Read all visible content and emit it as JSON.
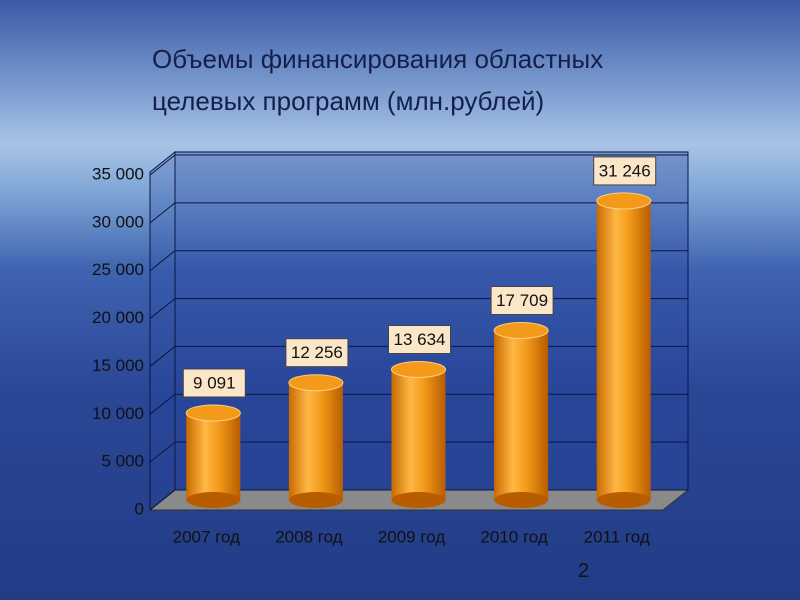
{
  "chart_data": {
    "type": "bar",
    "title": "Объемы финансирования областных целевых программ (млн.рублей)",
    "categories": [
      "2007 год",
      "2008 год",
      "2009 год",
      "2010 год",
      "2011 год"
    ],
    "values": [
      9091,
      12256,
      13634,
      17709,
      31246
    ],
    "value_labels": [
      "9 091",
      "12 256",
      "13 634",
      "17 709",
      "31 246"
    ],
    "color": "#f39a1a",
    "ylim": [
      0,
      35000
    ],
    "yticks": [
      0,
      {
        "value": 5000,
        "label": "5 000"
      },
      {
        "value": 10000,
        "label": "10 000"
      },
      {
        "value": 15000,
        "label": "15 000"
      },
      {
        "value": 20000,
        "label": "20 000"
      },
      {
        "value": 25000,
        "label": "25 000"
      },
      {
        "value": 30000,
        "label": "30 000"
      },
      {
        "value": 35000,
        "label": "35 000"
      }
    ],
    "grid": true
  },
  "slide_number": "2"
}
